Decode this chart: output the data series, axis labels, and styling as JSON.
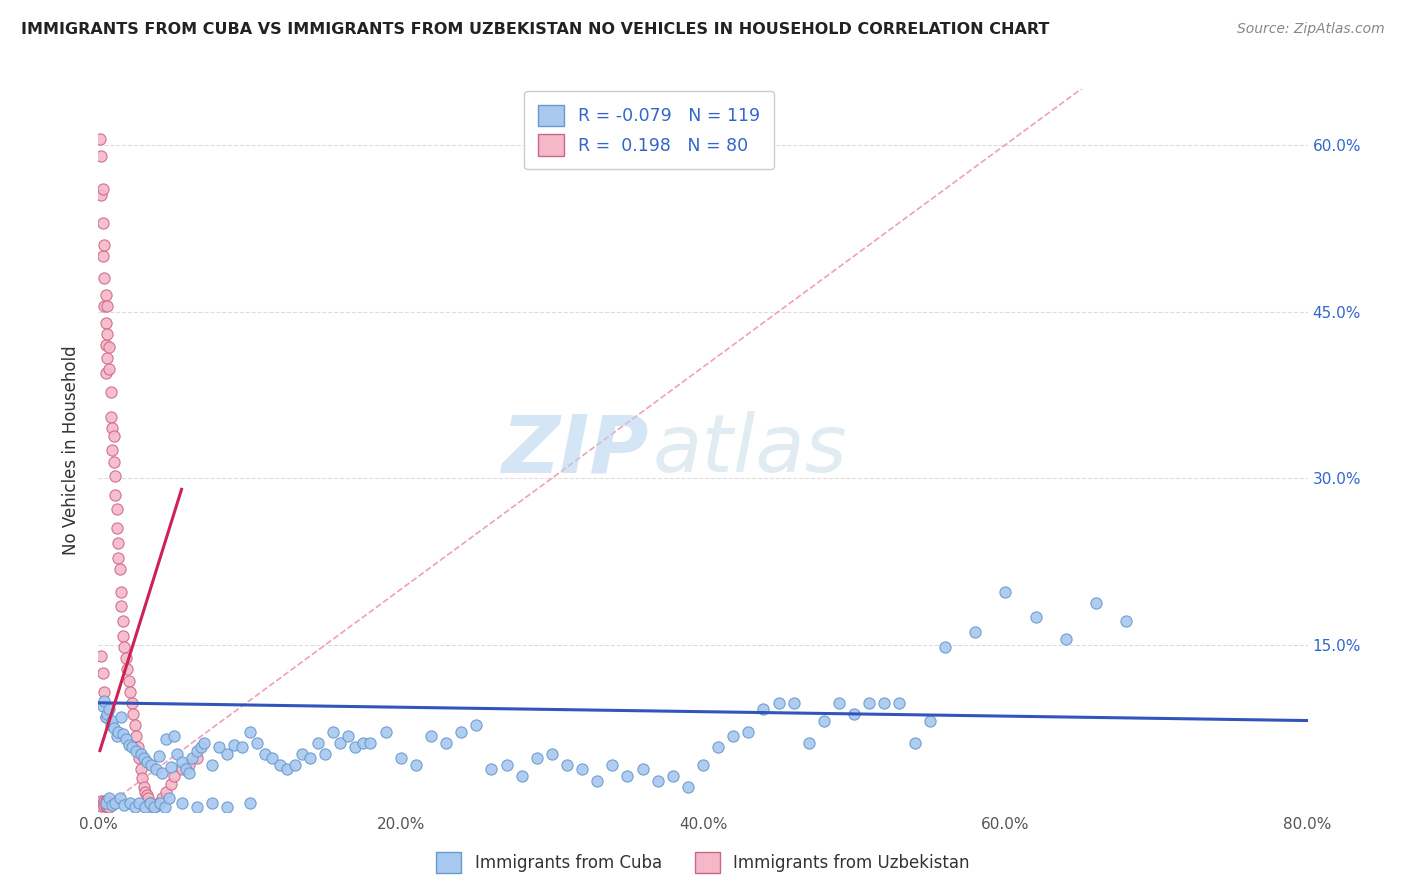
{
  "title": "IMMIGRANTS FROM CUBA VS IMMIGRANTS FROM UZBEKISTAN NO VEHICLES IN HOUSEHOLD CORRELATION CHART",
  "source": "Source: ZipAtlas.com",
  "ylabel": "No Vehicles in Household",
  "xlim": [
    0.0,
    0.8
  ],
  "ylim": [
    -0.02,
    0.65
  ],
  "plot_ylim": [
    0.0,
    0.65
  ],
  "xtick_vals": [
    0.0,
    0.2,
    0.4,
    0.6,
    0.8
  ],
  "xtick_labels": [
    "0.0%",
    "20.0%",
    "40.0%",
    "60.0%",
    "80.0%"
  ],
  "ytick_right_vals": [
    0.15,
    0.3,
    0.45,
    0.6
  ],
  "ytick_right_labels": [
    "15.0%",
    "30.0%",
    "45.0%",
    "60.0%"
  ],
  "cuba_color": "#a8c8f0",
  "cuba_edge_color": "#6699cc",
  "uzbekistan_color": "#f5b8c8",
  "uzbekistan_edge_color": "#cc6688",
  "trend_cuba_color": "#3355bb",
  "trend_uzbekistan_color": "#cc2255",
  "diag_color": "#f0a0b8",
  "cuba_R": -0.079,
  "cuba_N": 119,
  "uzbekistan_R": 0.198,
  "uzbekistan_N": 80,
  "legend_color": "#3366cc",
  "watermark_zip": "ZIP",
  "watermark_atlas": "atlas",
  "background_color": "#ffffff",
  "cuba_x": [
    0.003,
    0.004,
    0.005,
    0.006,
    0.007,
    0.008,
    0.009,
    0.01,
    0.012,
    0.013,
    0.015,
    0.016,
    0.018,
    0.02,
    0.022,
    0.025,
    0.028,
    0.03,
    0.032,
    0.035,
    0.038,
    0.04,
    0.042,
    0.045,
    0.048,
    0.05,
    0.052,
    0.055,
    0.058,
    0.06,
    0.062,
    0.065,
    0.068,
    0.07,
    0.075,
    0.08,
    0.085,
    0.09,
    0.095,
    0.1,
    0.105,
    0.11,
    0.115,
    0.12,
    0.125,
    0.13,
    0.135,
    0.14,
    0.145,
    0.15,
    0.155,
    0.16,
    0.165,
    0.17,
    0.175,
    0.18,
    0.19,
    0.2,
    0.21,
    0.22,
    0.23,
    0.24,
    0.25,
    0.26,
    0.27,
    0.28,
    0.29,
    0.3,
    0.31,
    0.32,
    0.33,
    0.34,
    0.35,
    0.36,
    0.37,
    0.38,
    0.39,
    0.4,
    0.41,
    0.42,
    0.43,
    0.44,
    0.45,
    0.46,
    0.47,
    0.48,
    0.49,
    0.5,
    0.51,
    0.52,
    0.53,
    0.54,
    0.55,
    0.56,
    0.58,
    0.6,
    0.62,
    0.64,
    0.66,
    0.68,
    0.005,
    0.007,
    0.009,
    0.011,
    0.014,
    0.017,
    0.021,
    0.024,
    0.027,
    0.031,
    0.034,
    0.037,
    0.041,
    0.044,
    0.047,
    0.055,
    0.065,
    0.075,
    0.085,
    0.1
  ],
  "cuba_y": [
    0.095,
    0.1,
    0.085,
    0.088,
    0.092,
    0.078,
    0.082,
    0.075,
    0.068,
    0.072,
    0.085,
    0.07,
    0.065,
    0.06,
    0.058,
    0.055,
    0.052,
    0.048,
    0.045,
    0.042,
    0.038,
    0.05,
    0.035,
    0.065,
    0.04,
    0.068,
    0.052,
    0.045,
    0.038,
    0.035,
    0.048,
    0.055,
    0.058,
    0.062,
    0.042,
    0.058,
    0.052,
    0.06,
    0.058,
    0.072,
    0.062,
    0.052,
    0.048,
    0.042,
    0.038,
    0.042,
    0.052,
    0.048,
    0.062,
    0.052,
    0.072,
    0.062,
    0.068,
    0.058,
    0.062,
    0.062,
    0.072,
    0.048,
    0.042,
    0.068,
    0.062,
    0.072,
    0.078,
    0.038,
    0.042,
    0.032,
    0.048,
    0.052,
    0.042,
    0.038,
    0.028,
    0.042,
    0.032,
    0.038,
    0.028,
    0.032,
    0.022,
    0.042,
    0.058,
    0.068,
    0.072,
    0.092,
    0.098,
    0.098,
    0.062,
    0.082,
    0.098,
    0.088,
    0.098,
    0.098,
    0.098,
    0.062,
    0.082,
    0.148,
    0.162,
    0.198,
    0.175,
    0.155,
    0.188,
    0.172,
    0.008,
    0.012,
    0.006,
    0.008,
    0.012,
    0.006,
    0.008,
    0.004,
    0.008,
    0.004,
    0.008,
    0.004,
    0.008,
    0.004,
    0.012,
    0.008,
    0.004,
    0.008,
    0.004,
    0.008
  ],
  "uzbek_x": [
    0.001,
    0.002,
    0.002,
    0.003,
    0.003,
    0.003,
    0.004,
    0.004,
    0.004,
    0.005,
    0.005,
    0.005,
    0.005,
    0.006,
    0.006,
    0.006,
    0.007,
    0.007,
    0.008,
    0.008,
    0.009,
    0.009,
    0.01,
    0.01,
    0.011,
    0.011,
    0.012,
    0.012,
    0.013,
    0.013,
    0.014,
    0.015,
    0.015,
    0.016,
    0.016,
    0.017,
    0.018,
    0.019,
    0.02,
    0.021,
    0.022,
    0.023,
    0.024,
    0.025,
    0.026,
    0.027,
    0.028,
    0.029,
    0.03,
    0.031,
    0.032,
    0.033,
    0.034,
    0.035,
    0.036,
    0.038,
    0.04,
    0.042,
    0.045,
    0.048,
    0.05,
    0.055,
    0.06,
    0.065,
    0.002,
    0.002,
    0.003,
    0.004,
    0.004,
    0.005,
    0.005,
    0.006,
    0.006,
    0.007,
    0.007,
    0.008,
    0.002,
    0.003,
    0.004,
    0.005
  ],
  "uzbek_y": [
    0.605,
    0.59,
    0.555,
    0.56,
    0.53,
    0.5,
    0.51,
    0.48,
    0.455,
    0.465,
    0.44,
    0.42,
    0.395,
    0.455,
    0.43,
    0.408,
    0.418,
    0.398,
    0.378,
    0.355,
    0.345,
    0.325,
    0.338,
    0.315,
    0.302,
    0.285,
    0.272,
    0.255,
    0.242,
    0.228,
    0.218,
    0.198,
    0.185,
    0.172,
    0.158,
    0.148,
    0.138,
    0.128,
    0.118,
    0.108,
    0.098,
    0.088,
    0.078,
    0.068,
    0.058,
    0.048,
    0.038,
    0.03,
    0.022,
    0.018,
    0.015,
    0.012,
    0.008,
    0.006,
    0.004,
    0.005,
    0.008,
    0.012,
    0.018,
    0.025,
    0.032,
    0.038,
    0.042,
    0.048,
    0.01,
    0.005,
    0.008,
    0.01,
    0.005,
    0.01,
    0.005,
    0.01,
    0.005,
    0.008,
    0.004,
    0.008,
    0.14,
    0.125,
    0.108,
    0.085
  ]
}
